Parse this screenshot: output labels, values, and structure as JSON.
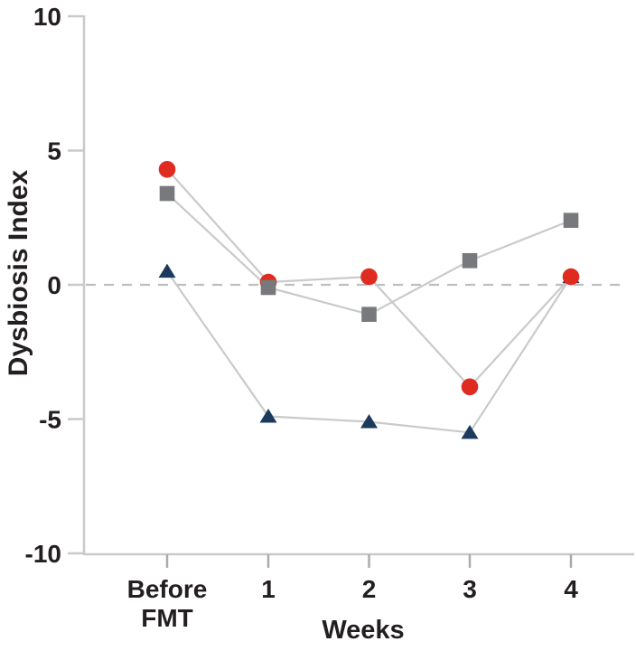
{
  "figure": {
    "description": "Line chart of Dysbiosis Index before and after FMT over weeks"
  },
  "chart_data": {
    "type": "line",
    "title": "",
    "xlabel": "Weeks",
    "ylabel": "Dysbiosis Index",
    "ylim": [
      -10,
      10
    ],
    "yticks": [
      10,
      5,
      0,
      -5,
      -10
    ],
    "ytick_labels": [
      "10",
      "5",
      "0",
      "-5",
      "-10"
    ],
    "categories": [
      "Before FMT",
      "1",
      "2",
      "3",
      "4"
    ],
    "grid": false,
    "legend": "none",
    "reference_line": {
      "y": 0,
      "style": "dashed",
      "color": "#bdbebf"
    },
    "series": [
      {
        "name": "red-circle-series",
        "marker": "circle",
        "color": "#e02b20",
        "values": [
          4.3,
          0.1,
          0.3,
          -3.8,
          0.3
        ]
      },
      {
        "name": "gray-square-series",
        "marker": "square",
        "color": "#77797c",
        "values": [
          3.4,
          -0.1,
          -1.1,
          0.9,
          2.4
        ]
      },
      {
        "name": "navy-triangle-series",
        "marker": "triangle",
        "color": "#1c3a5e",
        "values": [
          0.5,
          -4.9,
          -5.1,
          -5.5,
          0.3
        ]
      }
    ],
    "colors": {
      "connector_line": "#c9cacb",
      "axis_line": "#c9cacc",
      "tick_mark": "#a9abae",
      "text": "#231f20",
      "background": "#ffffff"
    }
  }
}
